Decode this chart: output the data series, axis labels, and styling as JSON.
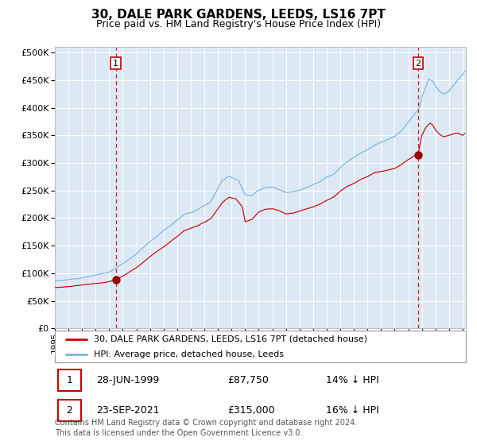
{
  "title": "30, DALE PARK GARDENS, LEEDS, LS16 7PT",
  "subtitle": "Price paid vs. HM Land Registry's House Price Index (HPI)",
  "legend_line1": "30, DALE PARK GARDENS, LEEDS, LS16 7PT (detached house)",
  "legend_line2": "HPI: Average price, detached house, Leeds",
  "footnote": "Contains HM Land Registry data © Crown copyright and database right 2024.\nThis data is licensed under the Open Government Licence v3.0.",
  "sale1_date": "28-JUN-1999",
  "sale1_price": "£87,750",
  "sale1_hpi": "14% ↓ HPI",
  "sale2_date": "23-SEP-2021",
  "sale2_price": "£315,000",
  "sale2_hpi": "16% ↓ HPI",
  "hpi_color": "#7ab4d8",
  "price_color": "#cc0000",
  "marker_color": "#990000",
  "dashed_line_color": "#cc0000",
  "bg_color": "#dce9f5",
  "grid_color": "#ffffff",
  "ylim_max": 500000,
  "yticks": [
    0,
    50000,
    100000,
    150000,
    200000,
    250000,
    300000,
    350000,
    400000,
    450000,
    500000
  ],
  "sale1_x": 1999.49,
  "sale2_x": 2021.73,
  "sale1_y": 87750,
  "sale2_y": 315000,
  "xmin": 1995,
  "xmax": 2025.25
}
